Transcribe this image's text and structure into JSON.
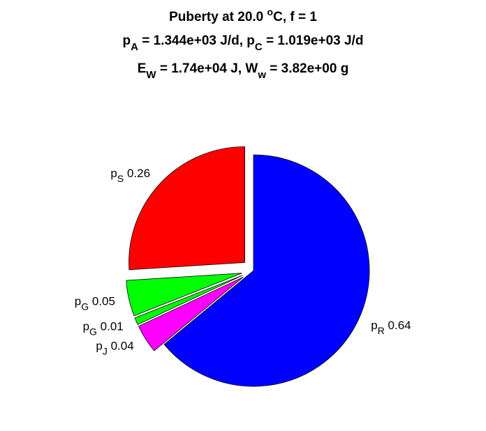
{
  "chart_data": {
    "type": "pie",
    "title_lines": [
      [
        "Puberty at 20.0 ",
        "o",
        "C, f = 1"
      ],
      [
        "p",
        "A",
        " = 1.344e+03 J/d,  p",
        "C",
        " = 1.019e+03 J/d"
      ],
      [
        "E",
        "W",
        " = 1.74e+04 J, W",
        "w",
        " = 3.82e+00 g"
      ]
    ],
    "categories": [
      [
        "p",
        "S"
      ],
      [
        "p",
        "G"
      ],
      [
        "p",
        "G"
      ],
      [
        "p",
        "J"
      ],
      [
        "p",
        "R"
      ]
    ],
    "values": [
      0.26,
      0.05,
      0.01,
      0.04,
      0.64
    ],
    "colors": [
      "#ff0000",
      "#00ff00",
      "#00ff00",
      "#ff00ff",
      "#0000ff"
    ],
    "explode": [
      true,
      true,
      true,
      true,
      false
    ]
  }
}
